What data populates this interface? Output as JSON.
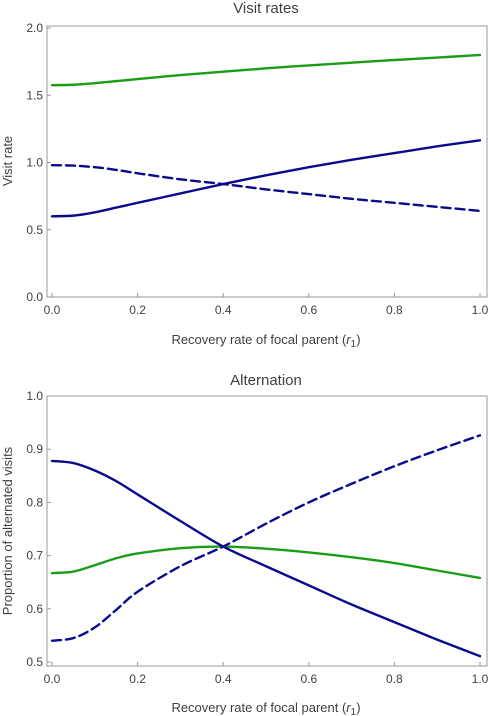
{
  "colors": {
    "green": "#1a9e1a",
    "blue": "#0a0a8c",
    "axis": "#9a9a9a",
    "text": "#404040"
  },
  "chart_data": [
    {
      "type": "line",
      "title": "Visit rates",
      "xlabel": "Recovery rate of focal parent (",
      "xlabel_var": "r",
      "xlabel_sub": "1",
      "xlabel_close": ")",
      "ylabel": "Visit rate",
      "xlim": [
        0,
        1
      ],
      "ylim": [
        0,
        2
      ],
      "xticks": [
        "0.0",
        "0.2",
        "0.4",
        "0.6",
        "0.8",
        "1.0"
      ],
      "yticks": [
        "0.0",
        "0.5",
        "1.0",
        "1.5",
        "2.0"
      ],
      "grid": false,
      "series": [
        {
          "style": "solid",
          "color": "green",
          "x": [
            0,
            0.05,
            0.1,
            0.15,
            0.2,
            0.3,
            0.4,
            0.5,
            0.6,
            0.7,
            0.8,
            0.9,
            1.0
          ],
          "y": [
            1.575,
            1.578,
            1.59,
            1.605,
            1.62,
            1.65,
            1.675,
            1.7,
            1.722,
            1.742,
            1.762,
            1.78,
            1.8
          ]
        },
        {
          "style": "solid",
          "color": "blue",
          "x": [
            0,
            0.05,
            0.1,
            0.15,
            0.2,
            0.3,
            0.4,
            0.5,
            0.6,
            0.7,
            0.8,
            0.9,
            1.0
          ],
          "y": [
            0.6,
            0.605,
            0.63,
            0.665,
            0.7,
            0.77,
            0.84,
            0.905,
            0.965,
            1.02,
            1.07,
            1.12,
            1.165
          ]
        },
        {
          "style": "dashed",
          "color": "blue",
          "x": [
            0,
            0.05,
            0.1,
            0.15,
            0.2,
            0.3,
            0.4,
            0.5,
            0.6,
            0.7,
            0.8,
            0.9,
            1.0
          ],
          "y": [
            0.98,
            0.977,
            0.965,
            0.945,
            0.92,
            0.875,
            0.84,
            0.8,
            0.765,
            0.73,
            0.7,
            0.67,
            0.64
          ]
        }
      ]
    },
    {
      "type": "line",
      "title": "Alternation",
      "xlabel": "Recovery rate of focal parent (",
      "xlabel_var": "r",
      "xlabel_sub": "1",
      "xlabel_close": ")",
      "ylabel": "Proportion of alternated visits",
      "xlim": [
        0,
        1
      ],
      "ylim": [
        0.5,
        1.0
      ],
      "xticks": [
        "0.0",
        "0.2",
        "0.4",
        "0.6",
        "0.8",
        "1.0"
      ],
      "yticks": [
        "0.5",
        "0.6",
        "0.7",
        "0.8",
        "0.9",
        "1.0"
      ],
      "grid": false,
      "series": [
        {
          "style": "solid",
          "color": "green",
          "x": [
            0,
            0.05,
            0.1,
            0.15,
            0.2,
            0.3,
            0.4,
            0.5,
            0.6,
            0.7,
            0.8,
            0.9,
            1.0
          ],
          "y": [
            0.667,
            0.67,
            0.682,
            0.695,
            0.704,
            0.714,
            0.717,
            0.713,
            0.706,
            0.697,
            0.686,
            0.672,
            0.658
          ]
        },
        {
          "style": "solid",
          "color": "blue",
          "x": [
            0,
            0.05,
            0.1,
            0.15,
            0.2,
            0.3,
            0.4,
            0.5,
            0.6,
            0.7,
            0.8,
            0.9,
            1.0
          ],
          "y": [
            0.878,
            0.874,
            0.86,
            0.84,
            0.815,
            0.765,
            0.717,
            0.68,
            0.644,
            0.608,
            0.575,
            0.542,
            0.511
          ]
        },
        {
          "style": "dashed",
          "color": "blue",
          "x": [
            0,
            0.05,
            0.1,
            0.15,
            0.2,
            0.3,
            0.4,
            0.5,
            0.6,
            0.7,
            0.8,
            0.9,
            1.0
          ],
          "y": [
            0.54,
            0.545,
            0.565,
            0.598,
            0.632,
            0.68,
            0.717,
            0.76,
            0.8,
            0.835,
            0.868,
            0.898,
            0.926
          ]
        }
      ]
    }
  ]
}
